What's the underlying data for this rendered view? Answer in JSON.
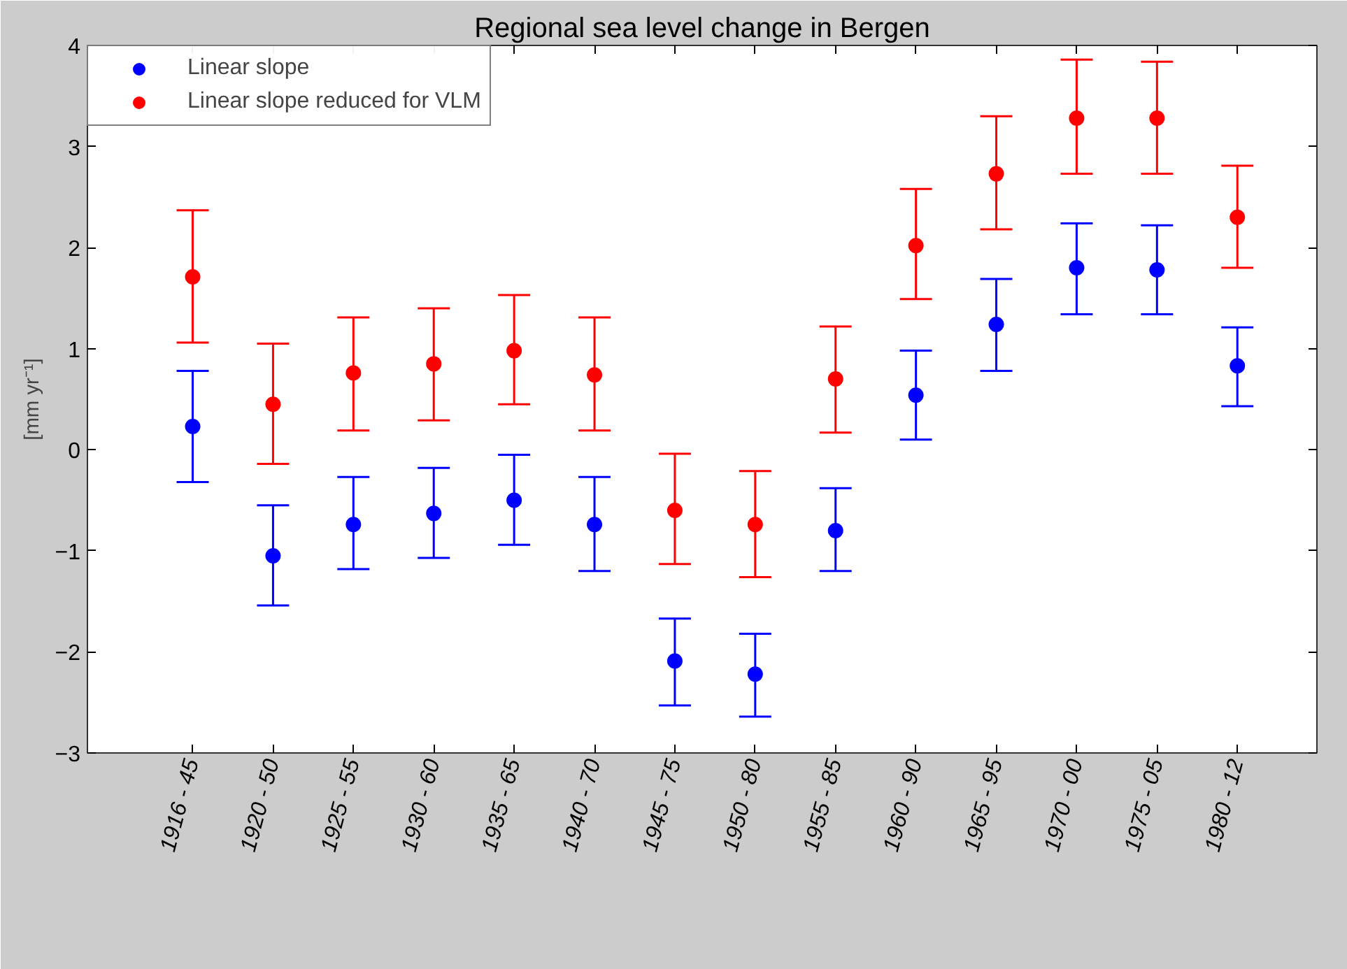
{
  "chart_data": {
    "type": "scatter",
    "title": "Regional sea level change in Bergen",
    "ylabel": "[mm yr⁻¹]",
    "categories": [
      "1916 - 45",
      "1920 - 50",
      "1925 - 55",
      "1930 - 60",
      "1935 - 65",
      "1940 - 70",
      "1945 - 75",
      "1950 - 80",
      "1955 - 85",
      "1960 - 90",
      "1965 - 95",
      "1970 - 00",
      "1975 - 05",
      "1980 - 12"
    ],
    "series": [
      {
        "name": "Linear slope",
        "color": "#0000ff",
        "values": [
          0.23,
          -1.05,
          -0.74,
          -0.63,
          -0.5,
          -0.74,
          -2.09,
          -2.22,
          -0.8,
          0.54,
          1.24,
          1.8,
          1.78,
          0.83
        ],
        "errors": [
          [
            -0.32,
            0.78
          ],
          [
            -1.54,
            -0.55
          ],
          [
            -1.18,
            -0.27
          ],
          [
            -1.07,
            -0.18
          ],
          [
            -0.94,
            -0.05
          ],
          [
            -1.2,
            -0.27
          ],
          [
            -2.53,
            -1.67
          ],
          [
            -2.64,
            -1.82
          ],
          [
            -1.2,
            -0.38
          ],
          [
            0.1,
            0.98
          ],
          [
            0.78,
            1.69
          ],
          [
            1.34,
            2.24
          ],
          [
            1.34,
            2.22
          ],
          [
            0.43,
            1.21
          ]
        ]
      },
      {
        "name": "Linear slope reduced for VLM",
        "color": "#ff0000",
        "values": [
          1.71,
          0.45,
          0.76,
          0.85,
          0.98,
          0.74,
          -0.6,
          -0.74,
          0.7,
          2.02,
          2.73,
          3.28,
          3.28,
          2.3
        ],
        "errors": [
          [
            1.06,
            2.37
          ],
          [
            -0.14,
            1.05
          ],
          [
            0.19,
            1.31
          ],
          [
            0.29,
            1.4
          ],
          [
            0.45,
            1.53
          ],
          [
            0.19,
            1.31
          ],
          [
            -1.13,
            -0.04
          ],
          [
            -1.26,
            -0.21
          ],
          [
            0.17,
            1.22
          ],
          [
            1.49,
            2.58
          ],
          [
            2.18,
            3.3
          ],
          [
            2.73,
            3.86
          ],
          [
            2.73,
            3.84
          ],
          [
            1.8,
            2.81
          ]
        ]
      }
    ],
    "ylim": [
      -3,
      4
    ],
    "yticks": [
      -3,
      -2,
      -1,
      0,
      1,
      2,
      3,
      4
    ],
    "grid": false,
    "legend": "top left",
    "marker": "circle"
  }
}
